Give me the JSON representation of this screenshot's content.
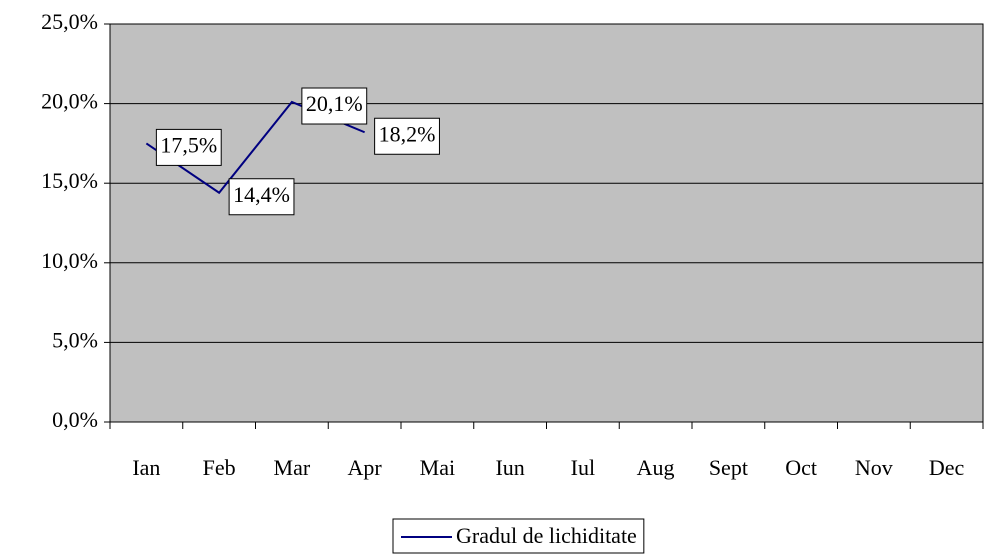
{
  "chart_data": {
    "type": "line",
    "categories": [
      "Ian",
      "Feb",
      "Mar",
      "Apr",
      "Mai",
      "Iun",
      "Iul",
      "Aug",
      "Sept",
      "Oct",
      "Nov",
      "Dec"
    ],
    "series": [
      {
        "name": "Gradul de lichiditate",
        "color": "#000080",
        "values": [
          17.5,
          14.4,
          20.1,
          18.2,
          null,
          null,
          null,
          null,
          null,
          null,
          null,
          null
        ],
        "value_labels": [
          "17,5%",
          "14,4%",
          "20,1%",
          "18,2%",
          null,
          null,
          null,
          null,
          null,
          null,
          null,
          null
        ]
      }
    ],
    "ylim": [
      0,
      25
    ],
    "yticks": [
      {
        "value": 0,
        "label": "0,0%"
      },
      {
        "value": 5,
        "label": "5,0%"
      },
      {
        "value": 10,
        "label": "10,0%"
      },
      {
        "value": 15,
        "label": "15,0%"
      },
      {
        "value": 20,
        "label": "20,0%"
      },
      {
        "value": 25,
        "label": "25,0%"
      }
    ],
    "grid": true,
    "plot_background": "#c0c0c0",
    "legend": "bottom"
  }
}
